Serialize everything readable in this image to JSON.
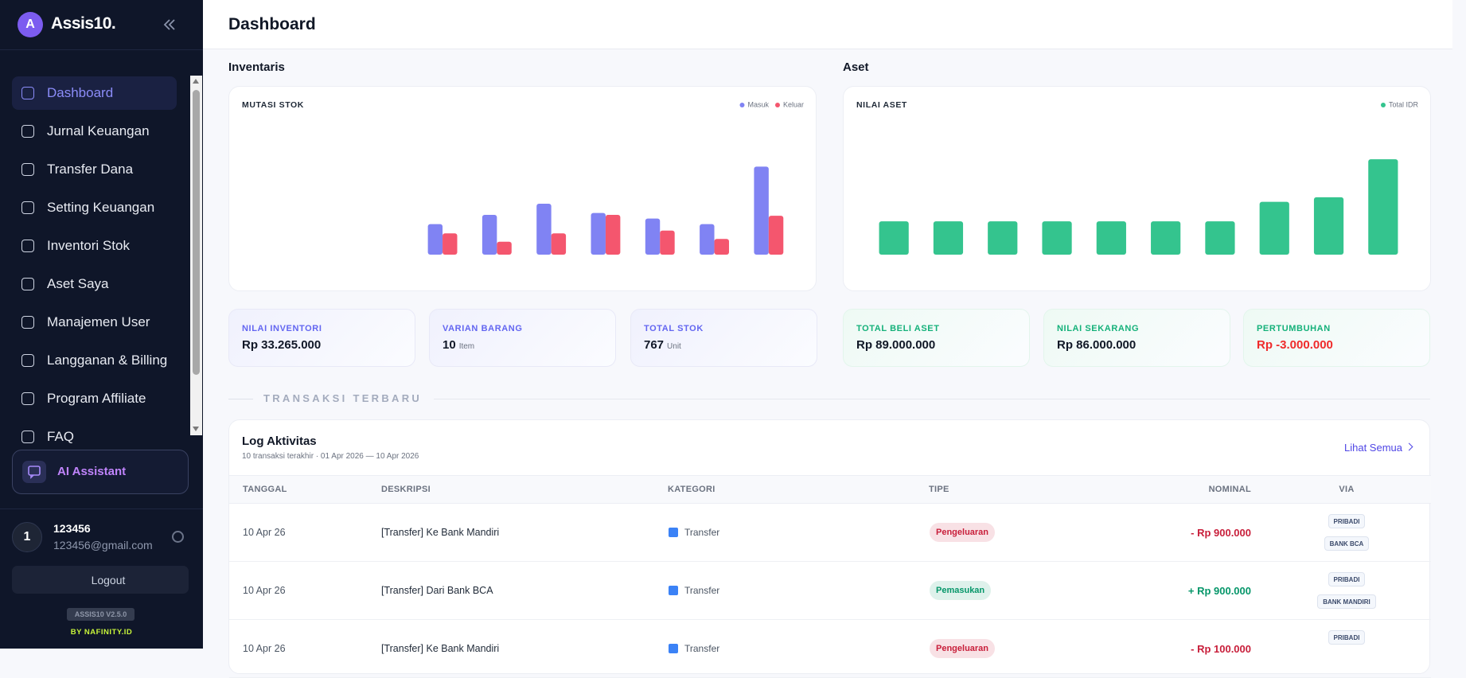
{
  "sidebar": {
    "logo_letter": "A",
    "brand": "Assis10.",
    "nav": [
      "Dashboard",
      "Jurnal Keuangan",
      "Transfer Dana",
      "Setting Keuangan",
      "Inventori Stok",
      "Aset Saya",
      "Manajemen User",
      "Langganan & Billing",
      "Program Affiliate",
      "FAQ"
    ],
    "ai_assistant": "AI Assistant",
    "user": {
      "avatar": "1",
      "name": "123456",
      "email": "123456@gmail.com"
    },
    "logout": "Logout",
    "version": "ASSIS10 V2.5.0",
    "credit": "BY NAFINITY.ID"
  },
  "header": {
    "title": "Dashboard"
  },
  "inventory": {
    "title": "Inventaris",
    "stats": [
      {
        "label": "NILAI INVENTORI",
        "value": "Rp 33.265.000"
      },
      {
        "label": "VARIAN BARANG",
        "value": "10",
        "unit": "Item"
      },
      {
        "label": "TOTAL STOK",
        "value": "767",
        "unit": "Unit"
      }
    ]
  },
  "assets": {
    "title": "Aset",
    "stats": [
      {
        "label": "TOTAL BELI ASET",
        "value": "Rp 89.000.000"
      },
      {
        "label": "NILAI SEKARANG",
        "value": "Rp 86.000.000"
      },
      {
        "label": "PERTUMBUHAN",
        "value": "Rp -3.000.000",
        "color": "#ef2b2b"
      }
    ]
  },
  "chart_data": [
    {
      "type": "bar",
      "title": "MUTASI STOK",
      "categories": [
        null,
        null,
        null,
        null,
        null,
        null,
        null,
        null,
        null,
        null
      ],
      "series": [
        {
          "name": "Masuk",
          "color": "#8083f3",
          "values": [
            null,
            null,
            null,
            33,
            43,
            55,
            45,
            39,
            33,
            95
          ]
        },
        {
          "name": "Keluar",
          "color": "#f4566e",
          "values": [
            null,
            null,
            null,
            23,
            14,
            23,
            43,
            26,
            17,
            42
          ]
        }
      ]
    },
    {
      "type": "bar",
      "title": "NILAI ASET",
      "categories": [
        null,
        null,
        null,
        null,
        null,
        null,
        null,
        null,
        null,
        null
      ],
      "series": [
        {
          "name": "Total IDR",
          "color": "#34c48e",
          "values": [
            36,
            36,
            36,
            36,
            36,
            36,
            36,
            57,
            62,
            103
          ]
        }
      ]
    }
  ],
  "transactions": {
    "section": "TRANSAKSI TERBARU",
    "title": "Log Aktivitas",
    "subtitle": "10 transaksi terakhir · 01 Apr 2026 — 10 Apr 2026",
    "link": "Lihat Semua",
    "columns": [
      "TANGGAL",
      "DESKRIPSI",
      "KATEGORI",
      "TIPE",
      "NOMINAL",
      "VIA"
    ],
    "rows": [
      {
        "date": "10 Apr 26",
        "description": "[Transfer] Ke Bank Mandiri",
        "category": "Transfer",
        "type": "Pengeluaran",
        "nominal": "- Rp 900.000",
        "color": "#c81e3a",
        "via": [
          "PRIBADI",
          "BANK BCA"
        ]
      },
      {
        "date": "10 Apr 26",
        "description": "[Transfer] Dari Bank BCA",
        "category": "Transfer",
        "type": "Pemasukan",
        "nominal": "+ Rp 900.000",
        "color": "#059669",
        "via": [
          "PRIBADI",
          "BANK MANDIRI"
        ]
      },
      {
        "date": "10 Apr 26",
        "description": "[Transfer] Ke Bank Mandiri",
        "category": "Transfer",
        "type": "Pengeluaran",
        "nominal": "- Rp 100.000",
        "color": "#c81e3a",
        "via": [
          "PRIBADI"
        ]
      }
    ]
  }
}
